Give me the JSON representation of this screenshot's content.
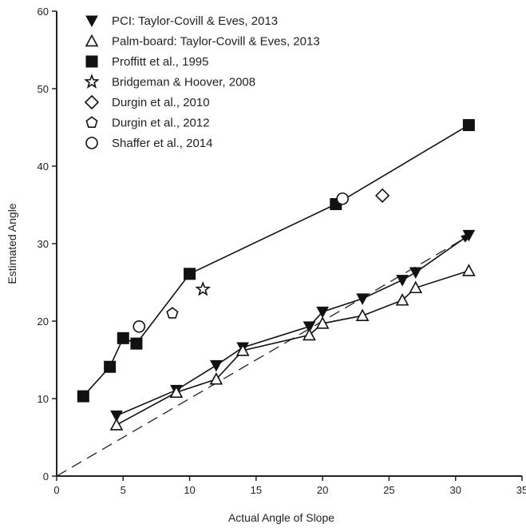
{
  "chart_data": {
    "type": "scatter",
    "xlabel": "Actual Angle of Slope",
    "ylabel": "Estimated Angle",
    "xlim": [
      0,
      35
    ],
    "ylim": [
      0,
      60
    ],
    "x_ticks": [
      0,
      5,
      10,
      15,
      20,
      25,
      30,
      35
    ],
    "y_ticks": [
      0,
      10,
      20,
      30,
      40,
      50,
      60
    ],
    "grid": false,
    "legend_position": "top-left",
    "reference_line": {
      "style": "dashed",
      "points": [
        [
          0,
          0
        ],
        [
          31,
          31
        ]
      ]
    },
    "series": [
      {
        "name": "PCI: Taylor-Covill & Eves, 2013",
        "marker": "filled-down-triangle",
        "connected": true,
        "arrow_at_end": true,
        "points": [
          [
            4.5,
            7.8
          ],
          [
            9,
            11.1
          ],
          [
            12,
            14.3
          ],
          [
            14,
            16.6
          ],
          [
            19,
            19.3
          ],
          [
            20,
            21.2
          ],
          [
            23,
            22.9
          ],
          [
            26,
            25.3
          ],
          [
            27,
            26.3
          ],
          [
            31,
            31.1
          ]
        ]
      },
      {
        "name": "Palm-board: Taylor-Covill & Eves, 2013",
        "marker": "open-triangle",
        "connected": true,
        "points": [
          [
            4.5,
            6.6
          ],
          [
            9,
            10.8
          ],
          [
            12,
            12.5
          ],
          [
            14,
            16.2
          ],
          [
            19,
            18.2
          ],
          [
            20,
            19.7
          ],
          [
            23,
            20.7
          ],
          [
            26,
            22.7
          ],
          [
            27,
            24.3
          ],
          [
            31,
            26.5
          ]
        ]
      },
      {
        "name": "Proffitt et al., 1995",
        "marker": "filled-square",
        "connected": true,
        "points": [
          [
            2,
            10.3
          ],
          [
            4,
            14.1
          ],
          [
            5,
            17.8
          ],
          [
            6,
            17.1
          ],
          [
            10,
            26.1
          ],
          [
            21,
            35.1
          ],
          [
            31,
            45.3
          ]
        ]
      },
      {
        "name": "Bridgeman & Hoover, 2008",
        "marker": "open-star",
        "connected": false,
        "points": [
          [
            11,
            24.1
          ]
        ]
      },
      {
        "name": "Durgin et al., 2010",
        "marker": "open-diamond",
        "connected": false,
        "points": [
          [
            24.5,
            36.2
          ]
        ]
      },
      {
        "name": "Durgin et al., 2012",
        "marker": "open-pentagon",
        "connected": false,
        "points": [
          [
            8.7,
            21
          ]
        ]
      },
      {
        "name": "Shaffer et al., 2014",
        "marker": "open-circle",
        "connected": false,
        "points": [
          [
            6.2,
            19.3
          ],
          [
            21.5,
            35.8
          ]
        ]
      }
    ]
  }
}
